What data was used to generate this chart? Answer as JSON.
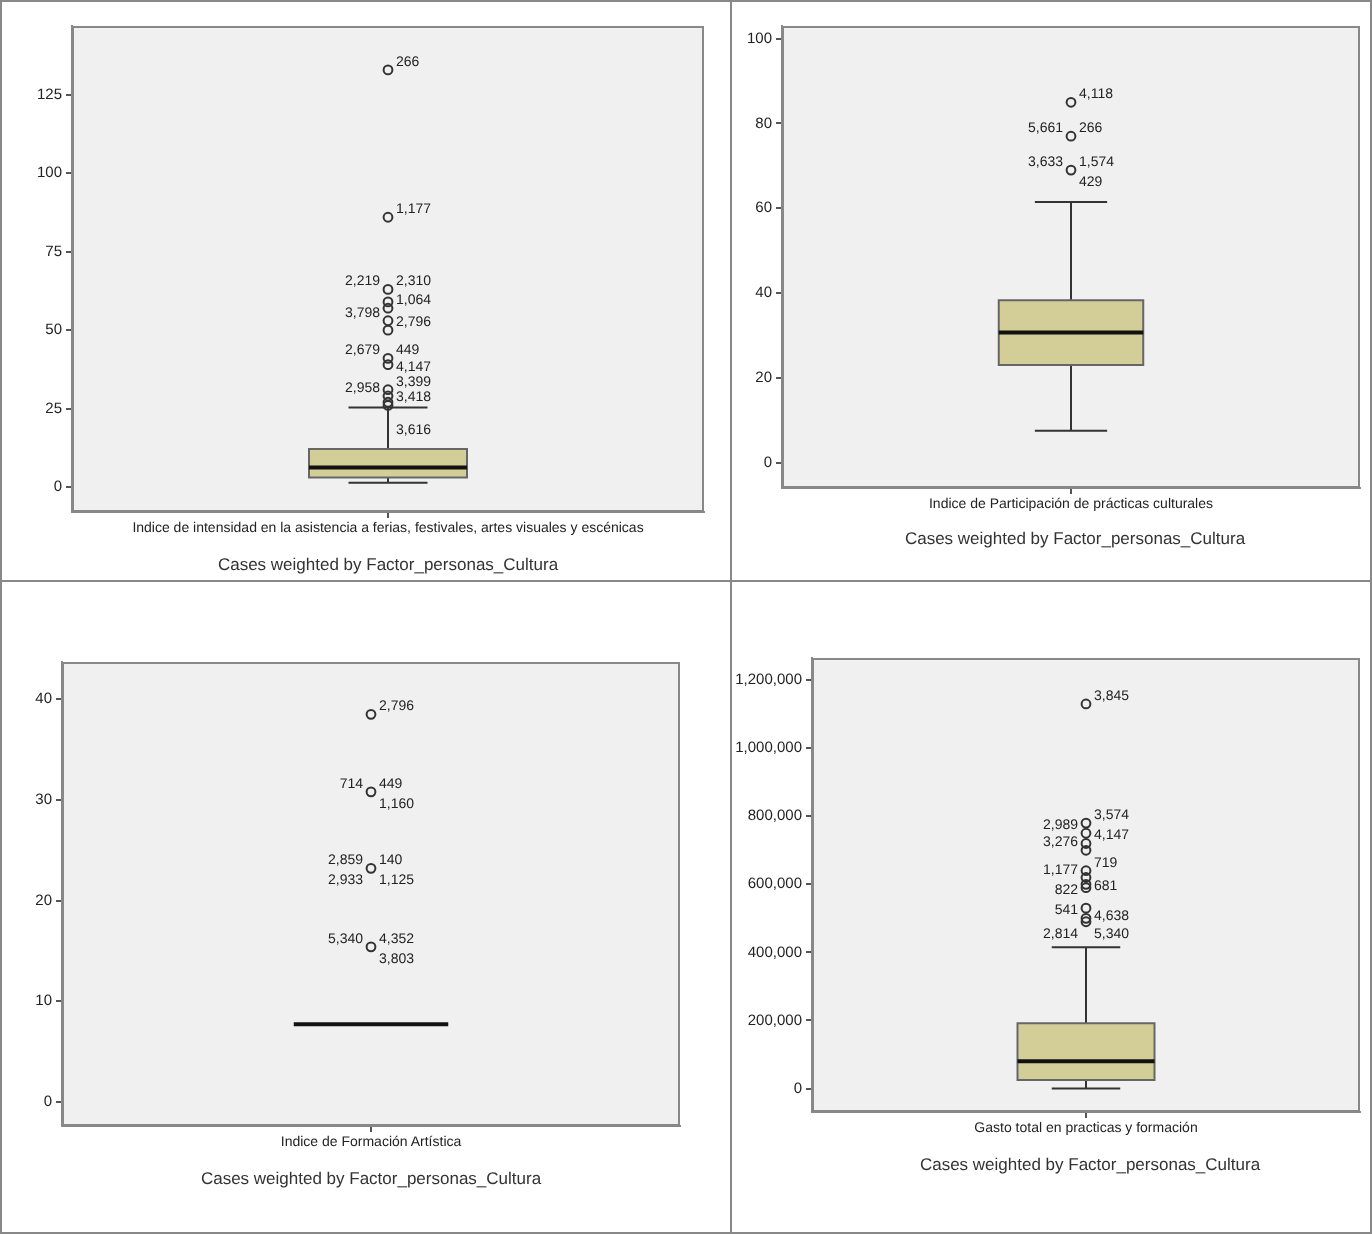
{
  "chart_data": [
    {
      "type": "box",
      "categories": [
        "Indice de intensidad en la asistencia a ferias, festivales, artes visuales y escénicas"
      ],
      "color": "#d3ce97",
      "ylim": [
        -8,
        147
      ],
      "yticks": [
        0,
        25,
        50,
        75,
        100,
        125
      ],
      "marker": "circle",
      "boxes": [
        {
          "low": 1.3,
          "q1": 3,
          "median": 6.2,
          "q3": 12.1,
          "high": 25.3
        }
      ],
      "series": [
        {
          "type": "scatter",
          "color": "#333333",
          "x": [
            "Indice de intensidad en la asistencia a ferias, festivales, artes visuales y escénicas",
            "Indice de intensidad en la asistencia a ferias, festivales, artes visuales y escénicas",
            "Indice de intensidad en la asistencia a ferias, festivales, artes visuales y escénicas",
            "Indice de intensidad en la asistencia a ferias, festivales, artes visuales y escénicas",
            "Indice de intensidad en la asistencia a ferias, festivales, artes visuales y escénicas",
            "Indice de intensidad en la asistencia a ferias, festivales, artes visuales y escénicas",
            "Indice de intensidad en la asistencia a ferias, festivales, artes visuales y escénicas",
            "Indice de intensidad en la asistencia a ferias, festivales, artes visuales y escénicas",
            "Indice de intensidad en la asistencia a ferias, festivales, artes visuales y escénicas",
            "Indice de intensidad en la asistencia a ferias, festivales, artes visuales y escénicas",
            "Indice de intensidad en la asistencia a ferias, festivales, artes visuales y escénicas",
            "Indice de intensidad en la asistencia a ferias, festivales, artes visuales y escénicas",
            "Indice de intensidad en la asistencia a ferias, festivales, artes visuales y escénicas"
          ],
          "values": [
            133,
            86,
            63,
            59,
            57,
            53,
            50,
            41,
            39,
            31,
            29,
            27,
            26
          ]
        }
      ],
      "annotations": [
        {
          "text": "266",
          "x": "Indice de intensidad en la asistencia a ferias, festivales, artes visuales y escénicas",
          "y": 133
        },
        {
          "text": "1,177",
          "x": "Indice de intensidad en la asistencia a ferias, festivales, artes visuales y escénicas",
          "y": 86
        },
        {
          "text": "2,310",
          "x": "Indice de intensidad en la asistencia a ferias, festivales, artes visuales y escénicas",
          "y": 63
        },
        {
          "text": "2,219",
          "x": "Indice de intensidad en la asistencia a ferias, festivales, artes visuales y escénicas",
          "y": 63
        },
        {
          "text": "1,064",
          "x": "Indice de intensidad en la asistencia a ferias, festivales, artes visuales y escénicas",
          "y": 57
        },
        {
          "text": "3,798",
          "x": "Indice de intensidad en la asistencia a ferias, festivales, artes visuales y escénicas",
          "y": 53
        },
        {
          "text": "2,796",
          "x": "Indice de intensidad en la asistencia a ferias, festivales, artes visuales y escénicas",
          "y": 50
        },
        {
          "text": "449",
          "x": "Indice de intensidad en la asistencia a ferias, festivales, artes visuales y escénicas",
          "y": 41
        },
        {
          "text": "2,679",
          "x": "Indice de intensidad en la asistencia a ferias, festivales, artes visuales y escénicas",
          "y": 41
        },
        {
          "text": "4,147",
          "x": "Indice de intensidad en la asistencia a ferias, festivales, artes visuales y escénicas",
          "y": 39
        },
        {
          "text": "3,399",
          "x": "Indice de intensidad en la asistencia a ferias, festivales, artes visuales y escénicas",
          "y": 31
        },
        {
          "text": "2,958",
          "x": "Indice de intensidad en la asistencia a ferias, festivales, artes visuales y escénicas",
          "y": 29
        },
        {
          "text": "3,616",
          "x": "Indice de intensidad en la asistencia a ferias, festivales, artes visuales y escénicas",
          "y": 27
        },
        {
          "text": "3,418",
          "x": "Indice de intensidad en la asistencia a ferias, festivales, artes visuales y escénicas",
          "y": 26
        },
        "Cases weighted by Factor_personas_Cultura"
      ]
    },
    {
      "type": "box",
      "categories": [
        "Indice de Participación de prácticas culturales"
      ],
      "color": "#d3ce97",
      "ylim": [
        -6,
        103
      ],
      "yticks": [
        0,
        20,
        40,
        60,
        80,
        100
      ],
      "marker": "circle",
      "boxes": [
        {
          "low": 7.5,
          "q1": 23,
          "median": 30.7,
          "q3": 38.3,
          "high": 61.5
        }
      ],
      "series": [
        {
          "type": "scatter",
          "color": "#333333",
          "x": [
            "Indice de Participación de prácticas culturales",
            "Indice de Participación de prácticas culturales",
            "Indice de Participación de prácticas culturales"
          ],
          "values": [
            85,
            77,
            69
          ]
        }
      ],
      "annotations": [
        {
          "text": "4,118",
          "x": "Indice de Participación de prácticas culturales",
          "y": 85
        },
        {
          "text": "266",
          "x": "Indice de Participación de prácticas culturales",
          "y": 77
        },
        {
          "text": "5,661",
          "x": "Indice de Participación de prácticas culturales",
          "y": 77
        },
        {
          "text": "1,574",
          "x": "Indice de Participación de prácticas culturales",
          "y": 69
        },
        {
          "text": "3,633",
          "x": "Indice de Participación de prácticas culturales",
          "y": 69
        },
        {
          "text": "429",
          "x": "Indice de Participación de prácticas culturales",
          "y": 69
        },
        "Cases weighted by Factor_personas_Cultura"
      ]
    },
    {
      "type": "box",
      "categories": [
        "Indice de Formación Artística"
      ],
      "ylim": [
        -2.4,
        43.7
      ],
      "yticks": [
        0,
        10,
        20,
        30,
        40
      ],
      "marker": "circle",
      "boxes": [
        {
          "low": 7.7,
          "q1": 7.7,
          "median": 7.7,
          "q3": 7.7,
          "high": 7.7
        }
      ],
      "series": [
        {
          "type": "scatter",
          "color": "#333333",
          "x": [
            "Indice de Formación Artística",
            "Indice de Formación Artística",
            "Indice de Formación Artística",
            "Indice de Formación Artística"
          ],
          "values": [
            38.5,
            30.8,
            23.2,
            15.4
          ]
        }
      ],
      "annotations": [
        {
          "text": "2,796",
          "x": "Indice de Formación Artística",
          "y": 38.5
        },
        {
          "text": "449",
          "x": "Indice de Formación Artística",
          "y": 30.8
        },
        {
          "text": "714",
          "x": "Indice de Formación Artística",
          "y": 30.8
        },
        {
          "text": "1,160",
          "x": "Indice de Formación Artística",
          "y": 30.8
        },
        {
          "text": "140",
          "x": "Indice de Formación Artística",
          "y": 23.2
        },
        {
          "text": "2,859",
          "x": "Indice de Formación Artística",
          "y": 23.2
        },
        {
          "text": "1,125",
          "x": "Indice de Formación Artística",
          "y": 23.2
        },
        {
          "text": "2,933",
          "x": "Indice de Formación Artística",
          "y": 23.2
        },
        {
          "text": "4,352",
          "x": "Indice de Formación Artística",
          "y": 15.4
        },
        {
          "text": "5,340",
          "x": "Indice de Formación Artística",
          "y": 15.4
        },
        {
          "text": "3,803",
          "x": "Indice de Formación Artística",
          "y": 15.4
        },
        "Cases weighted by Factor_personas_Cultura"
      ]
    },
    {
      "type": "box",
      "categories": [
        "Gasto total en practicas y formación"
      ],
      "color": "#d3ce97",
      "ylim": [
        -69000,
        1265000
      ],
      "marker": "circle",
      "yticks": [
        0,
        {
          "value": 200000,
          "label": "200,000"
        },
        {
          "value": 400000,
          "label": "400,000"
        },
        {
          "value": 600000,
          "label": "600,000"
        },
        {
          "value": 800000,
          "label": "800,000"
        },
        {
          "value": 1000000,
          "label": "1,000,000"
        },
        {
          "value": 1200000,
          "label": "1,200,000"
        }
      ],
      "boxes": [
        {
          "low": 0,
          "q1": 25000,
          "median": 80000,
          "q3": 192000,
          "high": 415000
        }
      ],
      "series": [
        {
          "type": "scatter",
          "color": "#333333",
          "x": [
            "Gasto total en practicas y formación",
            "Gasto total en practicas y formación",
            "Gasto total en practicas y formación",
            "Gasto total en practicas y formación",
            "Gasto total en practicas y formación",
            "Gasto total en practicas y formación",
            "Gasto total en practicas y formación",
            "Gasto total en practicas y formación",
            "Gasto total en practicas y formación",
            "Gasto total en practicas y formación",
            "Gasto total en practicas y formación",
            "Gasto total en practicas y formación"
          ],
          "values": [
            1130000,
            780000,
            750000,
            720000,
            700000,
            640000,
            620000,
            600000,
            590000,
            530000,
            500000,
            490000
          ]
        }
      ],
      "annotations": [
        {
          "text": "3,845",
          "x": "Gasto total en practicas y formación",
          "y": 1130000
        },
        {
          "text": "3,574",
          "x": "Gasto total en practicas y formación",
          "y": 780000
        },
        {
          "text": "2,989",
          "x": "Gasto total en practicas y formación",
          "y": 750000
        },
        {
          "text": "4,147",
          "x": "Gasto total en practicas y formación",
          "y": 720000
        },
        {
          "text": "3,276",
          "x": "Gasto total en practicas y formación",
          "y": 700000
        },
        {
          "text": "719",
          "x": "Gasto total en practicas y formación",
          "y": 640000
        },
        {
          "text": "1,177",
          "x": "Gasto total en practicas y formación",
          "y": 620000
        },
        {
          "text": "681",
          "x": "Gasto total en practicas y formación",
          "y": 600000
        },
        {
          "text": "822",
          "x": "Gasto total en practicas y formación",
          "y": 590000
        },
        {
          "text": "4,638",
          "x": "Gasto total en practicas y formación",
          "y": 590000
        },
        {
          "text": "541",
          "x": "Gasto total en practicas y formación",
          "y": 530000
        },
        {
          "text": "5,340",
          "x": "Gasto total en practicas y formación",
          "y": 490000
        },
        {
          "text": "2,814",
          "x": "Gasto total en practicas y formación",
          "y": 490000
        },
        "Cases weighted by Factor_personas_Cultura"
      ]
    }
  ]
}
